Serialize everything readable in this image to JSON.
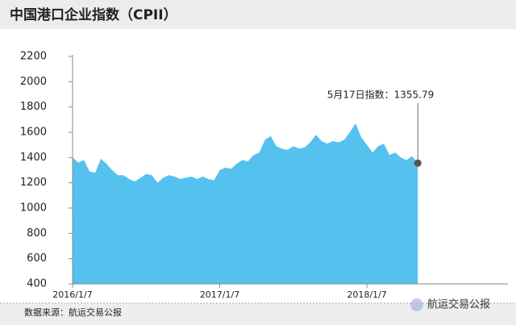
{
  "chart_data": {
    "type": "area",
    "title": "中国港口企业指数（CPII）",
    "categories": [
      "2016/1/7",
      null,
      null,
      null,
      null,
      null,
      null,
      null,
      null,
      null,
      null,
      null,
      null,
      null,
      null,
      null,
      null,
      null,
      null,
      null,
      null,
      null,
      null,
      null,
      null,
      null,
      "2017/1/7",
      null,
      null,
      null,
      null,
      null,
      null,
      null,
      null,
      null,
      null,
      null,
      null,
      null,
      null,
      null,
      null,
      null,
      null,
      null,
      null,
      null,
      null,
      null,
      null,
      null,
      "2018/1/7",
      null,
      null,
      null,
      null,
      null,
      null,
      null,
      null,
      null
    ],
    "values": [
      1400,
      1360,
      1380,
      1290,
      1280,
      1390,
      1350,
      1300,
      1260,
      1260,
      1230,
      1210,
      1240,
      1270,
      1260,
      1200,
      1240,
      1260,
      1250,
      1230,
      1240,
      1250,
      1230,
      1250,
      1230,
      1220,
      1300,
      1320,
      1310,
      1350,
      1380,
      1370,
      1420,
      1440,
      1540,
      1570,
      1490,
      1470,
      1460,
      1490,
      1470,
      1480,
      1520,
      1580,
      1530,
      1510,
      1530,
      1520,
      1540,
      1600,
      1670,
      1560,
      1500,
      1440,
      1490,
      1510,
      1420,
      1440,
      1400,
      1380,
      1410,
      1355.79
    ],
    "color": "#55c1ee",
    "ylim": [
      400,
      2200
    ],
    "yticks": [
      400,
      600,
      800,
      1000,
      1200,
      1400,
      1600,
      1800,
      2000,
      2200
    ],
    "annotation": "5月17日指数：1355.79",
    "source": "数据来源：航运交易公报",
    "watermark": "航运交易公报"
  }
}
